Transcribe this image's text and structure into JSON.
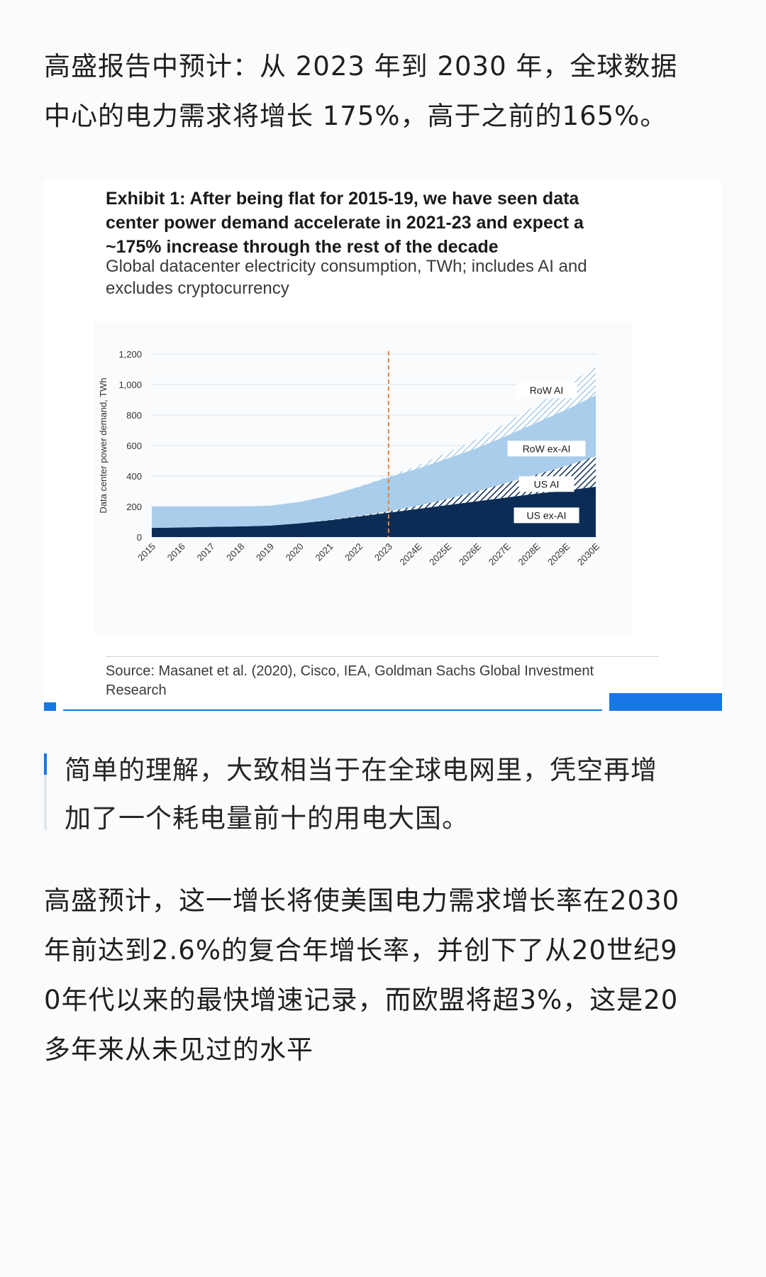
{
  "article": {
    "paragraph1": [
      "高盛报告中预计：从 2023 年到 2030 年，全球数据",
      "中心的电力需求将增长 175%，高于之前的165%。"
    ],
    "quote": [
      "简单的理解，大致相当于在全球电网里，凭空再增",
      "加了一个耗电量前十的用电大国。"
    ],
    "paragraph2": [
      "高盛预计，这一增长将使美国电力需求增长率在2030",
      "年前达到2.6%的复合年增长率，并创下了从20世纪9",
      "0年代以来的最快增速记录，而欧盟将超3%，这是20",
      "多年来从未见过的水平"
    ]
  },
  "figure": {
    "title_lines": [
      "Exhibit 1: After being flat for 2015-19, we have seen data",
      "center power demand accelerate in 2021-23 and expect a",
      "~175% increase through the rest of the decade"
    ],
    "subtitle_lines": [
      "Global datacenter electricity consumption, TWh; includes AI and",
      "excludes cryptocurrency"
    ],
    "source_lines": [
      "Source: Masanet et al. (2020), Cisco, IEA, Goldman Sachs Global Investment",
      "Research"
    ]
  },
  "chart_data": {
    "type": "area",
    "stacked": true,
    "ylabel": "Data center power demand, TWh",
    "ylim": [
      0,
      1200
    ],
    "yticks": [
      "0",
      "200",
      "400",
      "600",
      "800",
      "1,000",
      "1,200"
    ],
    "yticks_values": [
      0,
      200,
      400,
      600,
      800,
      1000,
      1200
    ],
    "categories": [
      "2015",
      "2016",
      "2017",
      "2018",
      "2019",
      "2020",
      "2021",
      "2022",
      "2023",
      "2024E",
      "2025E",
      "2026E",
      "2027E",
      "2028E",
      "2029E",
      "2030E"
    ],
    "series": [
      {
        "name": "US ex-AI",
        "values": [
          60,
          63,
          67,
          70,
          75,
          90,
          110,
          135,
          160,
          185,
          210,
          235,
          260,
          285,
          305,
          330
        ],
        "color": "#0b2c55",
        "pattern": "solid"
      },
      {
        "name": "US AI",
        "values": [
          0,
          0,
          0,
          0,
          0,
          0,
          2,
          4,
          8,
          20,
          40,
          65,
          95,
          125,
          160,
          200
        ],
        "color": "#0b2c55",
        "pattern": "hatch"
      },
      {
        "name": "RoW ex-AI",
        "values": [
          140,
          137,
          133,
          130,
          130,
          140,
          160,
          190,
          225,
          245,
          265,
          285,
          310,
          340,
          370,
          400
        ],
        "color": "#a9cdea",
        "pattern": "solid"
      },
      {
        "name": "RoW AI",
        "values": [
          0,
          0,
          0,
          0,
          0,
          0,
          0,
          2,
          5,
          20,
          40,
          60,
          85,
          115,
          155,
          190
        ],
        "color": "#a9cdea",
        "pattern": "hatch"
      }
    ],
    "vline": {
      "category": "2023",
      "color": "#e8843a",
      "style": "dashed"
    },
    "grid": true
  }
}
